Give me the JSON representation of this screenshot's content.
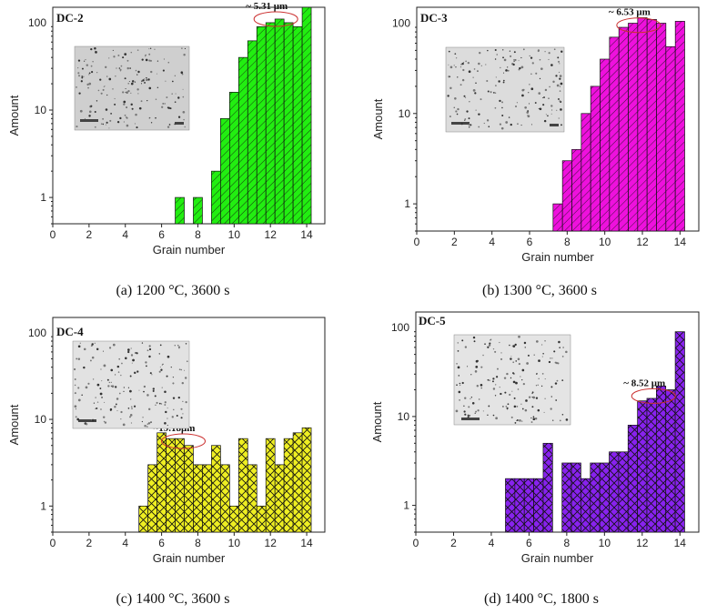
{
  "chart_data": [
    {
      "type": "bar",
      "panel_label": "DC-2",
      "caption": "(a) 1200 °C, 3600 s",
      "xlabel": "Grain number",
      "ylabel": "Amount",
      "yscale": "log",
      "xlim": [
        0,
        15
      ],
      "ylim": [
        0.5,
        150
      ],
      "xticks": [
        "0",
        "2",
        "4",
        "6",
        "8",
        "10",
        "12",
        "14"
      ],
      "yticks": [
        "1",
        "10",
        "100"
      ],
      "annotation": "~ 5.31 μm",
      "annotation_x": 12.3,
      "annotation_y": 110,
      "color": "#22ee11",
      "hatch": "single",
      "x": [
        7,
        8,
        9,
        9.5,
        10,
        10.5,
        11,
        11.5,
        12,
        12.5,
        13,
        13.5,
        14
      ],
      "values": [
        1,
        1,
        2,
        8,
        16,
        40,
        62,
        90,
        100,
        110,
        100,
        90,
        150
      ]
    },
    {
      "type": "bar",
      "panel_label": "DC-3",
      "caption": "(b) 1300 °C, 3600 s",
      "xlabel": "Grain number",
      "ylabel": "Amount",
      "yscale": "log",
      "xlim": [
        0,
        15
      ],
      "ylim": [
        0.5,
        150
      ],
      "xticks": [
        "0",
        "2",
        "4",
        "6",
        "8",
        "10",
        "12",
        "14"
      ],
      "yticks": [
        "1",
        "10",
        "100"
      ],
      "annotation": "~ 6.53 μm",
      "annotation_x": 11.8,
      "annotation_y": 95,
      "color": "#ee11dd",
      "hatch": "single",
      "x": [
        7.5,
        8,
        8.5,
        9,
        9.5,
        10,
        10.5,
        11,
        11.5,
        12,
        12.5,
        13,
        13.5,
        14
      ],
      "values": [
        1,
        3,
        4,
        10,
        20,
        40,
        70,
        90,
        100,
        115,
        110,
        100,
        55,
        105
      ]
    },
    {
      "type": "bar",
      "panel_label": "DC-4",
      "caption": "(c) 1400 °C, 3600 s",
      "xlabel": "Grain number",
      "ylabel": "Amount",
      "yscale": "log",
      "xlim": [
        0,
        15
      ],
      "ylim": [
        0.5,
        150
      ],
      "xticks": [
        "0",
        "2",
        "4",
        "6",
        "8",
        "10",
        "12",
        "14"
      ],
      "yticks": [
        "1",
        "10",
        "100"
      ],
      "annotation": "~19.18μm",
      "annotation_x": 7.2,
      "annotation_y": 5.6,
      "color": "#eeee22",
      "hatch": "cross",
      "x": [
        5,
        5.5,
        6,
        6.5,
        7,
        7.5,
        8,
        8.5,
        9,
        9.5,
        10,
        10.5,
        11,
        11.5,
        12,
        12.5,
        13,
        13.5,
        14
      ],
      "values": [
        1,
        3,
        7,
        6,
        6,
        5,
        3,
        3,
        5,
        3,
        1,
        6,
        3,
        1,
        6,
        3,
        6,
        7,
        8
      ]
    },
    {
      "type": "bar",
      "panel_label": "DC-5",
      "caption": "(d) 1400 °C, 1800 s",
      "xlabel": "Grain number",
      "ylabel": "Amount",
      "yscale": "log",
      "xlim": [
        0,
        15
      ],
      "ylim": [
        0.5,
        150
      ],
      "xticks": [
        "0",
        "2",
        "4",
        "6",
        "8",
        "10",
        "12",
        "14"
      ],
      "yticks": [
        "1",
        "10",
        "100"
      ],
      "annotation": "~ 8.52 μm",
      "annotation_x": 12.6,
      "annotation_y": 17,
      "color": "#8822ee",
      "hatch": "cross",
      "x": [
        5,
        5.5,
        6,
        6.5,
        7,
        8,
        8.5,
        9,
        9.5,
        10,
        10.5,
        11,
        11.5,
        12,
        12.5,
        13,
        13.5,
        14
      ],
      "values": [
        2,
        2,
        2,
        2,
        5,
        3,
        3,
        2,
        3,
        3,
        4,
        4,
        8,
        15,
        16,
        22,
        20,
        90
      ]
    }
  ]
}
